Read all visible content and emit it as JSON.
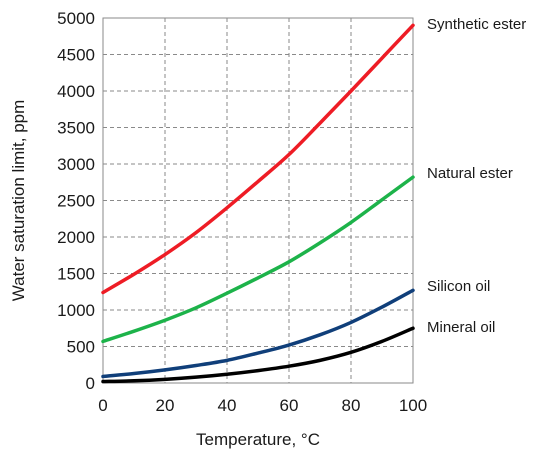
{
  "chart_data": {
    "type": "line",
    "title": "",
    "xlabel": "Temperature, °C",
    "ylabel": "Water saturation limit, ppm",
    "xlim": [
      0,
      100
    ],
    "ylim": [
      0,
      5000
    ],
    "x_ticks": [
      "0",
      "20",
      "40",
      "60",
      "80",
      "100"
    ],
    "y_ticks": [
      "0",
      "500",
      "1000",
      "1500",
      "2000",
      "2500",
      "3000",
      "3500",
      "4000",
      "4500",
      "5000"
    ],
    "grid": true,
    "legend": "none",
    "x": [
      0,
      10,
      20,
      30,
      40,
      50,
      60,
      70,
      80,
      90,
      100
    ],
    "series": [
      {
        "name": "Synthetic ester",
        "color": "#ee1c25",
        "values": [
          1240,
          1490,
          1760,
          2060,
          2400,
          2760,
          3130,
          3560,
          4000,
          4450,
          4900
        ]
      },
      {
        "name": "Natural ester",
        "color": "#1db34a",
        "values": [
          570,
          710,
          860,
          1030,
          1230,
          1440,
          1660,
          1920,
          2200,
          2510,
          2820
        ]
      },
      {
        "name": "Silicon oil",
        "color": "#103f7a",
        "values": [
          90,
          130,
          180,
          240,
          310,
          410,
          520,
          660,
          830,
          1040,
          1270
        ]
      },
      {
        "name": "Mineral oil",
        "color": "#000000",
        "values": [
          20,
          30,
          50,
          80,
          120,
          170,
          230,
          310,
          420,
          570,
          750
        ]
      }
    ]
  }
}
